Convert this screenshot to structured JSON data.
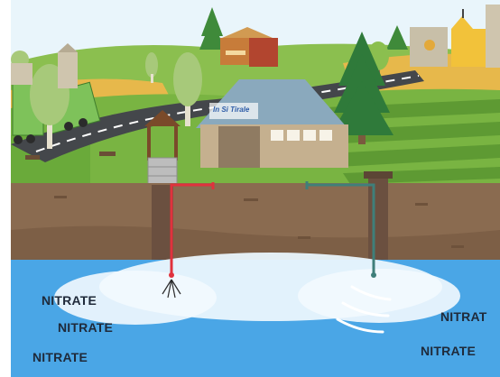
{
  "diagram": {
    "logo_text": "In Si Tirale",
    "left_labels": [
      "NITRATE",
      "NITRATE",
      "NITRATE"
    ],
    "right_labels": [
      "NITRAT",
      "NITRATE"
    ],
    "colors": {
      "sky": "#e9f5fb",
      "grass": "#6aaa3a",
      "soil": "#8a6b50",
      "water": "#4aa6e6",
      "pipe_left": "#e0323d",
      "pipe_right": "#3f7f7a"
    }
  }
}
